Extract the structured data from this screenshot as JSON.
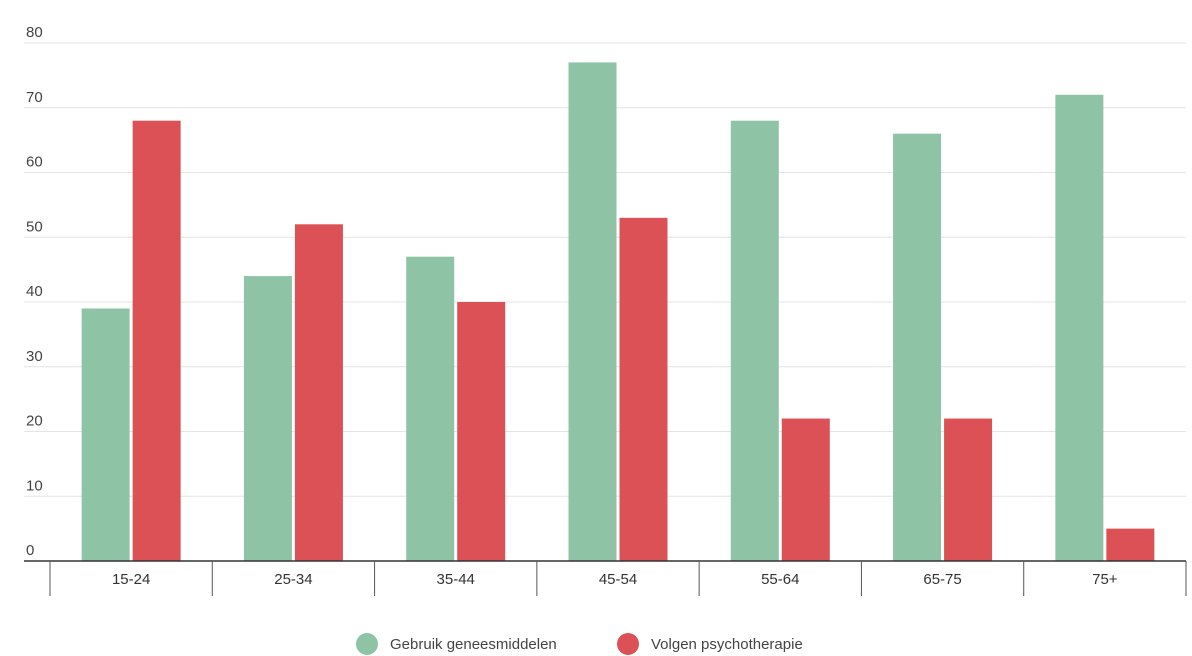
{
  "chart_data": {
    "type": "bar",
    "title": "",
    "xlabel": "",
    "ylabel": "",
    "categories": [
      "15-24",
      "25-34",
      "35-44",
      "45-54",
      "55-64",
      "65-75",
      "75+"
    ],
    "series": [
      {
        "name": "Gebruik geneesmiddelen",
        "color": "#8fc3a5",
        "values": [
          39,
          44,
          47,
          77,
          68,
          66,
          72
        ]
      },
      {
        "name": "Volgen psychotherapie",
        "color": "#db5156",
        "values": [
          68,
          52,
          40,
          53,
          22,
          22,
          5
        ]
      }
    ],
    "ylim": [
      0,
      80
    ],
    "yticks": [
      "0",
      "10",
      "20",
      "30",
      "40",
      "50",
      "60",
      "70",
      "80"
    ],
    "grid": true,
    "legend_position": "bottom-center"
  }
}
